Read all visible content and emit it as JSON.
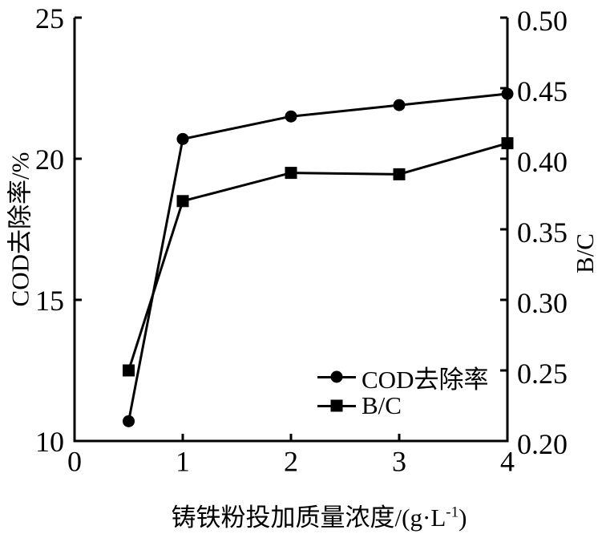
{
  "chart_data": {
    "type": "line",
    "title": "",
    "grid": false,
    "colors": {
      "line": "#000000",
      "background": "#ffffff",
      "text": "#000000"
    },
    "x": [
      0.5,
      1,
      2,
      3,
      4
    ],
    "series": [
      {
        "name": "COD去除率",
        "axis": "left",
        "marker": "circle",
        "values": [
          10.7,
          20.7,
          21.5,
          21.9,
          22.3
        ]
      },
      {
        "name": "B/C",
        "axis": "right",
        "marker": "square",
        "values": [
          0.25,
          0.37,
          0.39,
          0.389,
          0.411
        ]
      }
    ],
    "x_axis": {
      "label_prefix": "铸铁粉投加质量浓度/(g·L",
      "label_sup": "-1",
      "label_suffix": ")",
      "ticks": [
        0,
        1,
        2,
        3,
        4
      ],
      "lim": [
        0,
        4
      ],
      "decimals": 0
    },
    "left_axis": {
      "label": "COD去除率/%",
      "ticks": [
        10,
        15,
        20,
        25
      ],
      "lim": [
        10,
        25
      ],
      "decimals": 0
    },
    "right_axis": {
      "label": "B/C",
      "ticks": [
        0.2,
        0.25,
        0.3,
        0.35,
        0.4,
        0.45,
        0.5
      ],
      "lim": [
        0.2,
        0.5
      ],
      "decimals": 2
    },
    "legend": {
      "position": "inside-bottom-right",
      "entries": [
        {
          "label": "COD去除率",
          "marker": "circle"
        },
        {
          "label": "B/C",
          "marker": "square"
        }
      ]
    }
  }
}
